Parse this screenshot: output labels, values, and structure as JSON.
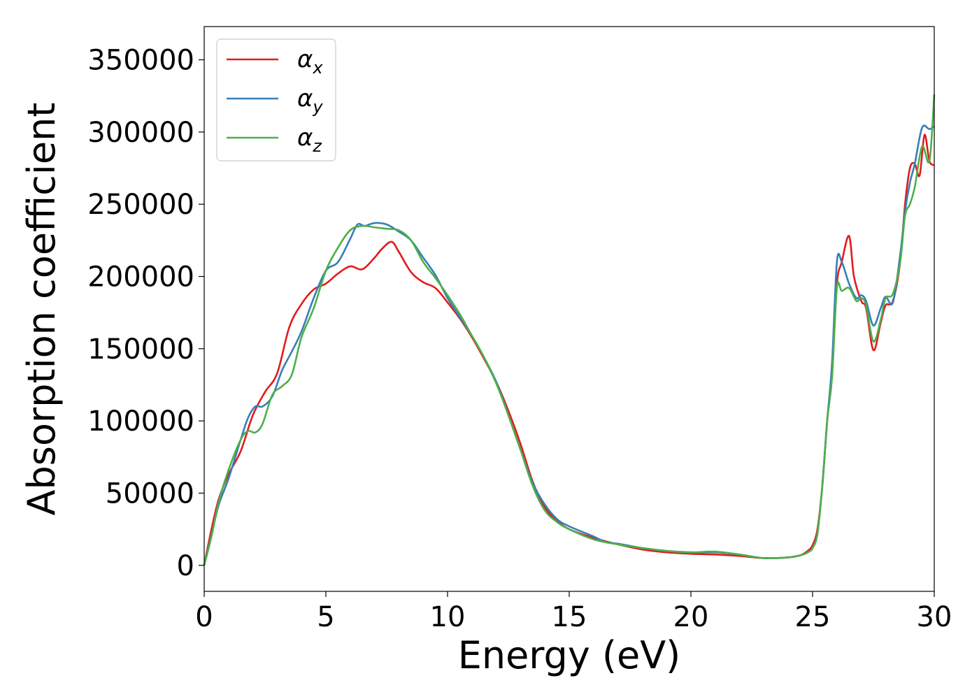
{
  "chart_data": {
    "type": "line",
    "title": "",
    "xlabel": "Energy (eV)",
    "ylabel": "Absorption coefficient",
    "xlim": [
      0,
      30
    ],
    "ylim": [
      -18000,
      373000
    ],
    "xticks": [
      0,
      5,
      10,
      15,
      20,
      25,
      30
    ],
    "yticks": [
      0,
      50000,
      100000,
      150000,
      200000,
      250000,
      300000,
      350000
    ],
    "grid": false,
    "legend_position": "top-left",
    "series": [
      {
        "name": "α",
        "name_sub": "x",
        "color": "#e41a1c",
        "points": [
          [
            0,
            0
          ],
          [
            0.3,
            25000
          ],
          [
            0.6,
            46000
          ],
          [
            1,
            63000
          ],
          [
            1.5,
            79000
          ],
          [
            2,
            104000
          ],
          [
            2.5,
            120000
          ],
          [
            3,
            133000
          ],
          [
            3.5,
            165000
          ],
          [
            4,
            181000
          ],
          [
            4.5,
            191000
          ],
          [
            5,
            195000
          ],
          [
            5.5,
            202000
          ],
          [
            6,
            207000
          ],
          [
            6.5,
            205000
          ],
          [
            7,
            213000
          ],
          [
            7.3,
            219000
          ],
          [
            7.7,
            224000
          ],
          [
            8,
            217000
          ],
          [
            8.5,
            203000
          ],
          [
            9,
            196000
          ],
          [
            9.5,
            192000
          ],
          [
            10,
            182000
          ],
          [
            10.5,
            171000
          ],
          [
            11,
            158000
          ],
          [
            11.5,
            143000
          ],
          [
            12,
            127000
          ],
          [
            12.5,
            107000
          ],
          [
            13,
            84000
          ],
          [
            13.5,
            58000
          ],
          [
            14,
            40000
          ],
          [
            14.5,
            31000
          ],
          [
            15,
            25000
          ],
          [
            16,
            19000
          ],
          [
            17,
            14500
          ],
          [
            18,
            11000
          ],
          [
            19,
            9000
          ],
          [
            20,
            8000
          ],
          [
            21,
            7500
          ],
          [
            22,
            6500
          ],
          [
            23,
            5000
          ],
          [
            24,
            5500
          ],
          [
            24.5,
            7000
          ],
          [
            24.8,
            10000
          ],
          [
            25,
            14000
          ],
          [
            25.2,
            25000
          ],
          [
            25.4,
            55000
          ],
          [
            25.6,
            100000
          ],
          [
            25.8,
            135000
          ],
          [
            26,
            195000
          ],
          [
            26.2,
            210000
          ],
          [
            26.5,
            228000
          ],
          [
            26.7,
            200000
          ],
          [
            27,
            183000
          ],
          [
            27.2,
            178000
          ],
          [
            27.5,
            149000
          ],
          [
            27.8,
            168000
          ],
          [
            28,
            180000
          ],
          [
            28.3,
            183000
          ],
          [
            28.6,
            210000
          ],
          [
            28.8,
            250000
          ],
          [
            29,
            275000
          ],
          [
            29.2,
            278000
          ],
          [
            29.4,
            270000
          ],
          [
            29.6,
            298000
          ],
          [
            29.8,
            280000
          ],
          [
            30,
            277000
          ]
        ]
      },
      {
        "name": "α",
        "name_sub": "y",
        "color": "#377eb8",
        "points": [
          [
            0,
            0
          ],
          [
            0.3,
            21000
          ],
          [
            0.6,
            42000
          ],
          [
            1,
            60000
          ],
          [
            1.5,
            87000
          ],
          [
            1.8,
            102000
          ],
          [
            2.1,
            110000
          ],
          [
            2.4,
            110000
          ],
          [
            2.8,
            117000
          ],
          [
            3.2,
            135000
          ],
          [
            3.6,
            148000
          ],
          [
            4,
            162000
          ],
          [
            4.5,
            185000
          ],
          [
            5,
            204000
          ],
          [
            5.5,
            210000
          ],
          [
            6,
            226000
          ],
          [
            6.3,
            236000
          ],
          [
            6.6,
            235000
          ],
          [
            7,
            237000
          ],
          [
            7.5,
            236000
          ],
          [
            8,
            231000
          ],
          [
            8.5,
            225000
          ],
          [
            9,
            213000
          ],
          [
            9.5,
            201000
          ],
          [
            10,
            185000
          ],
          [
            10.5,
            172000
          ],
          [
            11,
            159000
          ],
          [
            11.5,
            144000
          ],
          [
            12,
            127000
          ],
          [
            12.5,
            104000
          ],
          [
            13,
            80000
          ],
          [
            13.5,
            57000
          ],
          [
            14,
            42000
          ],
          [
            14.5,
            32000
          ],
          [
            15,
            27000
          ],
          [
            16,
            20000
          ],
          [
            16.5,
            16000
          ],
          [
            17,
            15000
          ],
          [
            18,
            12000
          ],
          [
            19,
            10000
          ],
          [
            20,
            9000
          ],
          [
            21,
            9000
          ],
          [
            22,
            7500
          ],
          [
            23,
            5000
          ],
          [
            24,
            5500
          ],
          [
            24.5,
            7000
          ],
          [
            24.8,
            9000
          ],
          [
            25,
            12000
          ],
          [
            25.2,
            22000
          ],
          [
            25.4,
            55000
          ],
          [
            25.6,
            100000
          ],
          [
            25.8,
            140000
          ],
          [
            26,
            210000
          ],
          [
            26.2,
            210000
          ],
          [
            26.5,
            195000
          ],
          [
            26.8,
            185000
          ],
          [
            27,
            187000
          ],
          [
            27.2,
            183000
          ],
          [
            27.5,
            166000
          ],
          [
            27.8,
            178000
          ],
          [
            28,
            186000
          ],
          [
            28.3,
            182000
          ],
          [
            28.6,
            215000
          ],
          [
            28.8,
            245000
          ],
          [
            29,
            265000
          ],
          [
            29.2,
            278000
          ],
          [
            29.5,
            303000
          ],
          [
            29.8,
            302000
          ],
          [
            30,
            304000
          ]
        ]
      },
      {
        "name": "α",
        "name_sub": "z",
        "color": "#4daf4a",
        "points": [
          [
            0,
            0
          ],
          [
            0.3,
            20000
          ],
          [
            0.6,
            44000
          ],
          [
            1,
            66000
          ],
          [
            1.5,
            87000
          ],
          [
            1.8,
            93000
          ],
          [
            2.1,
            92000
          ],
          [
            2.4,
            98000
          ],
          [
            2.8,
            118000
          ],
          [
            3.2,
            124000
          ],
          [
            3.6,
            132000
          ],
          [
            4,
            158000
          ],
          [
            4.5,
            178000
          ],
          [
            5,
            204000
          ],
          [
            5.5,
            220000
          ],
          [
            6,
            232000
          ],
          [
            6.5,
            235000
          ],
          [
            7,
            234000
          ],
          [
            7.5,
            233000
          ],
          [
            8,
            232000
          ],
          [
            8.5,
            225000
          ],
          [
            9,
            210000
          ],
          [
            9.5,
            199000
          ],
          [
            10,
            187000
          ],
          [
            10.5,
            174000
          ],
          [
            11,
            159000
          ],
          [
            11.5,
            144000
          ],
          [
            12,
            126000
          ],
          [
            12.5,
            104000
          ],
          [
            13,
            80000
          ],
          [
            13.5,
            55000
          ],
          [
            14,
            38000
          ],
          [
            14.5,
            30000
          ],
          [
            15,
            25000
          ],
          [
            16,
            18000
          ],
          [
            17,
            14500
          ],
          [
            18,
            12000
          ],
          [
            19,
            10000
          ],
          [
            20,
            9000
          ],
          [
            21,
            9500
          ],
          [
            22,
            7500
          ],
          [
            23,
            5000
          ],
          [
            24,
            5500
          ],
          [
            24.5,
            7000
          ],
          [
            24.8,
            9000
          ],
          [
            25,
            12000
          ],
          [
            25.2,
            22000
          ],
          [
            25.4,
            55000
          ],
          [
            25.6,
            100000
          ],
          [
            25.8,
            130000
          ],
          [
            26,
            192000
          ],
          [
            26.2,
            190000
          ],
          [
            26.5,
            192000
          ],
          [
            26.8,
            183000
          ],
          [
            27,
            185000
          ],
          [
            27.2,
            180000
          ],
          [
            27.5,
            155000
          ],
          [
            27.8,
            170000
          ],
          [
            28,
            185000
          ],
          [
            28.3,
            188000
          ],
          [
            28.6,
            210000
          ],
          [
            28.8,
            242000
          ],
          [
            29,
            250000
          ],
          [
            29.2,
            262000
          ],
          [
            29.5,
            290000
          ],
          [
            29.8,
            280000
          ],
          [
            30,
            326000
          ]
        ]
      }
    ]
  }
}
